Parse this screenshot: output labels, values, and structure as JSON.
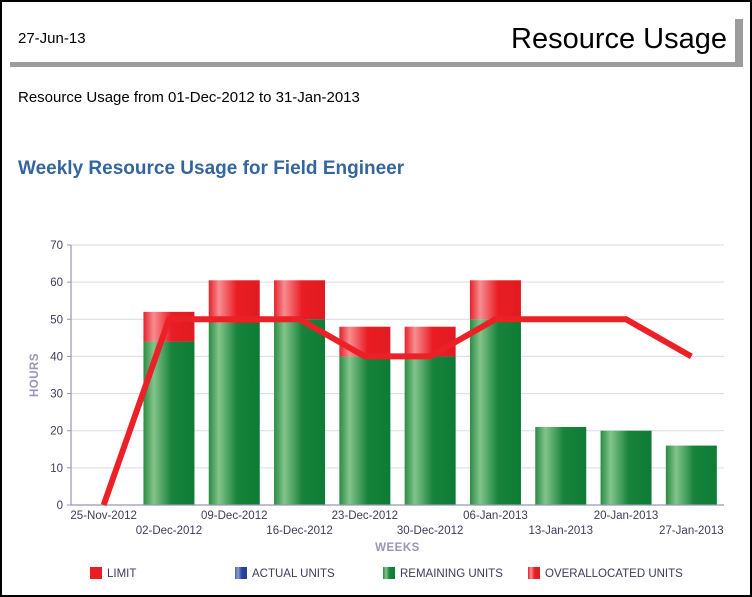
{
  "page": {
    "date": "27-Jun-13",
    "title": "Resource Usage",
    "subtitle": "Resource Usage from 01-Dec-2012 to 31-Jan-2013"
  },
  "chart_data": {
    "type": "bar",
    "title": "Weekly Resource Usage for Field Engineer",
    "xlabel": "WEEKS",
    "ylabel": "HOURS",
    "ylim": [
      0,
      70
    ],
    "yticks": [
      0,
      10,
      20,
      30,
      40,
      50,
      60,
      70
    ],
    "grid": true,
    "legend_position": "bottom",
    "categories": [
      "25-Nov-2012",
      "02-Dec-2012",
      "09-Dec-2012",
      "16-Dec-2012",
      "23-Dec-2012",
      "30-Dec-2012",
      "06-Jan-2013",
      "13-Jan-2013",
      "20-Jan-2013",
      "27-Jan-2013"
    ],
    "series": [
      {
        "name": "LIMIT",
        "type": "line",
        "color": "#ec2127",
        "values": [
          0,
          50,
          50,
          50,
          40,
          40,
          50,
          50,
          50,
          40
        ]
      },
      {
        "name": "ACTUAL UNITS",
        "type": "bar",
        "color": "#27479e",
        "values": [
          0,
          0,
          0,
          0,
          0,
          0,
          0,
          0,
          0,
          0
        ]
      },
      {
        "name": "REMAINING UNITS",
        "type": "bar",
        "color": "#0d7c35",
        "values": [
          0,
          44,
          49,
          50,
          40,
          40,
          50,
          21,
          20,
          16
        ]
      },
      {
        "name": "OVERALLOCATED UNITS",
        "type": "bar",
        "color": "#ed1c24",
        "values": [
          0,
          8,
          11.5,
          10.5,
          8,
          8,
          10.5,
          0,
          0,
          0
        ]
      }
    ]
  }
}
